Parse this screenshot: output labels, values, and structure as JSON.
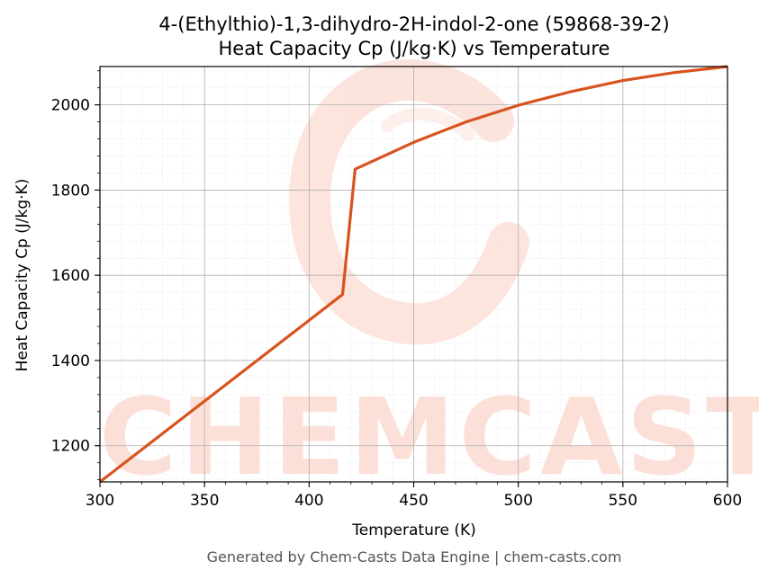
{
  "chart_data": {
    "type": "line",
    "title": "4-(Ethylthio)-1,3-dihydro-2H-indol-2-one (59868-39-2)",
    "subtitle": "Heat Capacity Cp (J/kg·K) vs Temperature",
    "xlabel": "Temperature (K)",
    "ylabel": "Heat Capacity Cp (J/kg·K)",
    "xlim": [
      300,
      600
    ],
    "ylim": [
      1115,
      2090
    ],
    "xticks": [
      300,
      350,
      400,
      450,
      500,
      550,
      600
    ],
    "yticks": [
      1200,
      1400,
      1600,
      1800,
      2000
    ],
    "grid": true,
    "series": [
      {
        "color": "#d9531e",
        "x": [
          300,
          416,
          422,
          450,
          475,
          500,
          525,
          550,
          575,
          600
        ],
        "y": [
          1115,
          1555,
          1849,
          1912,
          1960,
          1999,
          2031,
          2057,
          2076,
          2090
        ]
      }
    ]
  },
  "watermark": {
    "text": "CHEMCASTS"
  },
  "footer": "Generated by Chem-Casts Data Engine | chem-casts.com"
}
